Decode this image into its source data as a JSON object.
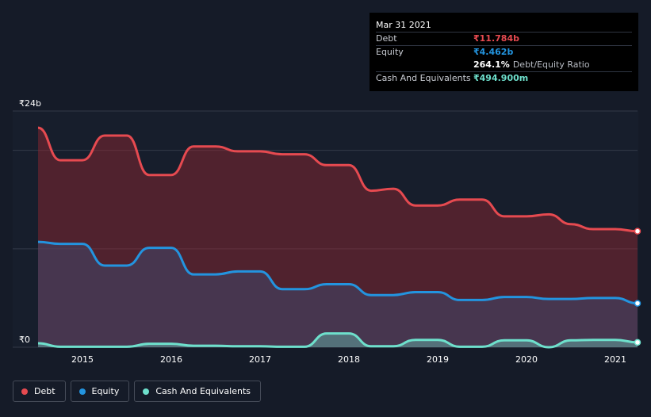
{
  "tooltip": {
    "date": "Mar 31 2021",
    "debt_label": "Debt",
    "debt_value": "₹11.784b",
    "equity_label": "Equity",
    "equity_value": "₹4.462b",
    "ratio_value": "264.1%",
    "ratio_label": "Debt/Equity Ratio",
    "cash_label": "Cash And Equivalents",
    "cash_value": "₹494.900m"
  },
  "legend": {
    "debt": "Debt",
    "equity": "Equity",
    "cash": "Cash And Equivalents"
  },
  "colors": {
    "debt": "#e64a50",
    "equity": "#2394df",
    "cash": "#6ee0cc",
    "background": "#151b28"
  },
  "chart_data": {
    "type": "area",
    "title": "",
    "ylim": [
      0,
      24
    ],
    "y_unit": "₹b",
    "y_tick_labels": [
      {
        "value": 24,
        "label": "₹24b"
      },
      {
        "value": 0,
        "label": "₹0"
      }
    ],
    "gridlines_at": [
      0,
      10,
      20,
      24
    ],
    "xlim": [
      2014.5,
      2021.25
    ],
    "x_ticks": [
      "2015",
      "2016",
      "2017",
      "2018",
      "2019",
      "2020",
      "2021"
    ],
    "series": [
      {
        "name": "Debt",
        "color": "#e64a50",
        "x": [
          2014.5,
          2014.75,
          2015.0,
          2015.25,
          2015.5,
          2015.75,
          2016.0,
          2016.25,
          2016.5,
          2016.75,
          2017.0,
          2017.25,
          2017.5,
          2017.75,
          2018.0,
          2018.25,
          2018.5,
          2018.75,
          2019.0,
          2019.25,
          2019.5,
          2019.75,
          2020.0,
          2020.25,
          2020.5,
          2020.75,
          2021.0,
          2021.25
        ],
        "values": [
          22.3,
          19.0,
          19.0,
          21.5,
          21.5,
          17.5,
          17.5,
          20.4,
          20.4,
          19.9,
          19.9,
          19.6,
          19.6,
          18.5,
          18.5,
          15.9,
          16.1,
          14.4,
          14.4,
          15.0,
          15.0,
          13.3,
          13.3,
          13.5,
          12.5,
          12.0,
          12.0,
          11.784
        ]
      },
      {
        "name": "Equity",
        "color": "#2394df",
        "x": [
          2014.5,
          2014.75,
          2015.0,
          2015.25,
          2015.5,
          2015.75,
          2016.0,
          2016.25,
          2016.5,
          2016.75,
          2017.0,
          2017.25,
          2017.5,
          2017.75,
          2018.0,
          2018.25,
          2018.5,
          2018.75,
          2019.0,
          2019.25,
          2019.5,
          2019.75,
          2020.0,
          2020.25,
          2020.5,
          2020.75,
          2021.0,
          2021.25
        ],
        "values": [
          10.7,
          10.5,
          10.5,
          8.3,
          8.3,
          10.1,
          10.1,
          7.4,
          7.4,
          7.7,
          7.7,
          5.9,
          5.9,
          6.4,
          6.4,
          5.3,
          5.3,
          5.6,
          5.6,
          4.8,
          4.8,
          5.1,
          5.1,
          4.9,
          4.9,
          5.0,
          5.0,
          4.462
        ]
      },
      {
        "name": "Cash And Equivalents",
        "color": "#6ee0cc",
        "x": [
          2014.5,
          2014.75,
          2015.0,
          2015.25,
          2015.5,
          2015.75,
          2016.0,
          2016.25,
          2016.5,
          2016.75,
          2017.0,
          2017.25,
          2017.5,
          2017.75,
          2018.0,
          2018.25,
          2018.5,
          2018.75,
          2019.0,
          2019.25,
          2019.5,
          2019.75,
          2020.0,
          2020.25,
          2020.5,
          2020.75,
          2021.0,
          2021.25
        ],
        "values": [
          0.4,
          0.05,
          0.05,
          0.05,
          0.05,
          0.35,
          0.35,
          0.15,
          0.15,
          0.1,
          0.1,
          0.05,
          0.05,
          1.4,
          1.4,
          0.1,
          0.1,
          0.75,
          0.75,
          0.05,
          0.05,
          0.7,
          0.7,
          0.0,
          0.7,
          0.75,
          0.75,
          0.4949
        ]
      }
    ]
  }
}
